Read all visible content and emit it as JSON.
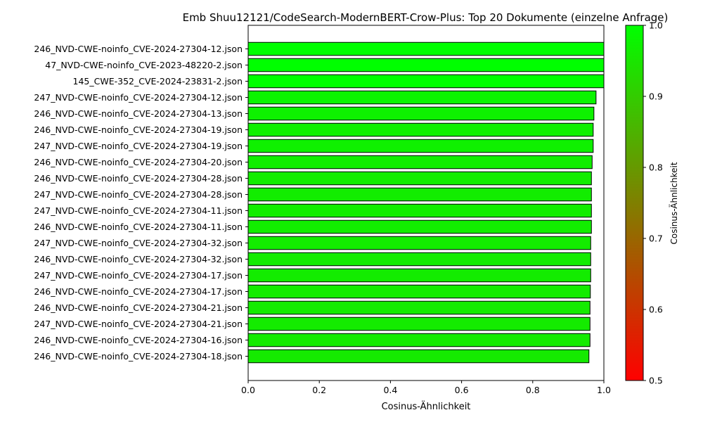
{
  "chart_data": {
    "type": "bar",
    "orientation": "horizontal",
    "title": "Emb Shuu12121/CodeSearch-ModernBERT-Crow-Plus: Top 20 Dokumente (einzelne Anfrage)",
    "xlabel": "Cosinus-Ähnlichkeit",
    "ylabel": "",
    "xlim": [
      0.0,
      1.0
    ],
    "xticks": [
      "0.0",
      "0.2",
      "0.4",
      "0.6",
      "0.8",
      "1.0"
    ],
    "grid": false,
    "categories": [
      "246_NVD-CWE-noinfo_CVE-2024-27304-12.json",
      "47_NVD-CWE-noinfo_CVE-2023-48220-2.json",
      "145_CWE-352_CVE-2024-23831-2.json",
      "247_NVD-CWE-noinfo_CVE-2024-27304-12.json",
      "246_NVD-CWE-noinfo_CVE-2024-27304-13.json",
      "246_NVD-CWE-noinfo_CVE-2024-27304-19.json",
      "247_NVD-CWE-noinfo_CVE-2024-27304-19.json",
      "246_NVD-CWE-noinfo_CVE-2024-27304-20.json",
      "246_NVD-CWE-noinfo_CVE-2024-27304-28.json",
      "247_NVD-CWE-noinfo_CVE-2024-27304-28.json",
      "247_NVD-CWE-noinfo_CVE-2024-27304-11.json",
      "246_NVD-CWE-noinfo_CVE-2024-27304-11.json",
      "247_NVD-CWE-noinfo_CVE-2024-27304-32.json",
      "246_NVD-CWE-noinfo_CVE-2024-27304-32.json",
      "247_NVD-CWE-noinfo_CVE-2024-27304-17.json",
      "246_NVD-CWE-noinfo_CVE-2024-27304-17.json",
      "246_NVD-CWE-noinfo_CVE-2024-27304-21.json",
      "247_NVD-CWE-noinfo_CVE-2024-27304-21.json",
      "246_NVD-CWE-noinfo_CVE-2024-27304-16.json",
      "246_NVD-CWE-noinfo_CVE-2024-27304-18.json"
    ],
    "values": [
      1.0,
      1.0,
      1.0,
      0.978,
      0.972,
      0.97,
      0.97,
      0.967,
      0.965,
      0.965,
      0.965,
      0.965,
      0.963,
      0.963,
      0.963,
      0.962,
      0.961,
      0.961,
      0.961,
      0.958
    ],
    "colorbar": {
      "label": "Cosinus-Ähnlichkeit",
      "range": [
        0.5,
        1.0
      ],
      "ticks": [
        "0.5",
        "0.6",
        "0.7",
        "0.8",
        "0.9",
        "1.0"
      ],
      "color_low": "#ff0000",
      "color_high": "#00ff00"
    }
  }
}
